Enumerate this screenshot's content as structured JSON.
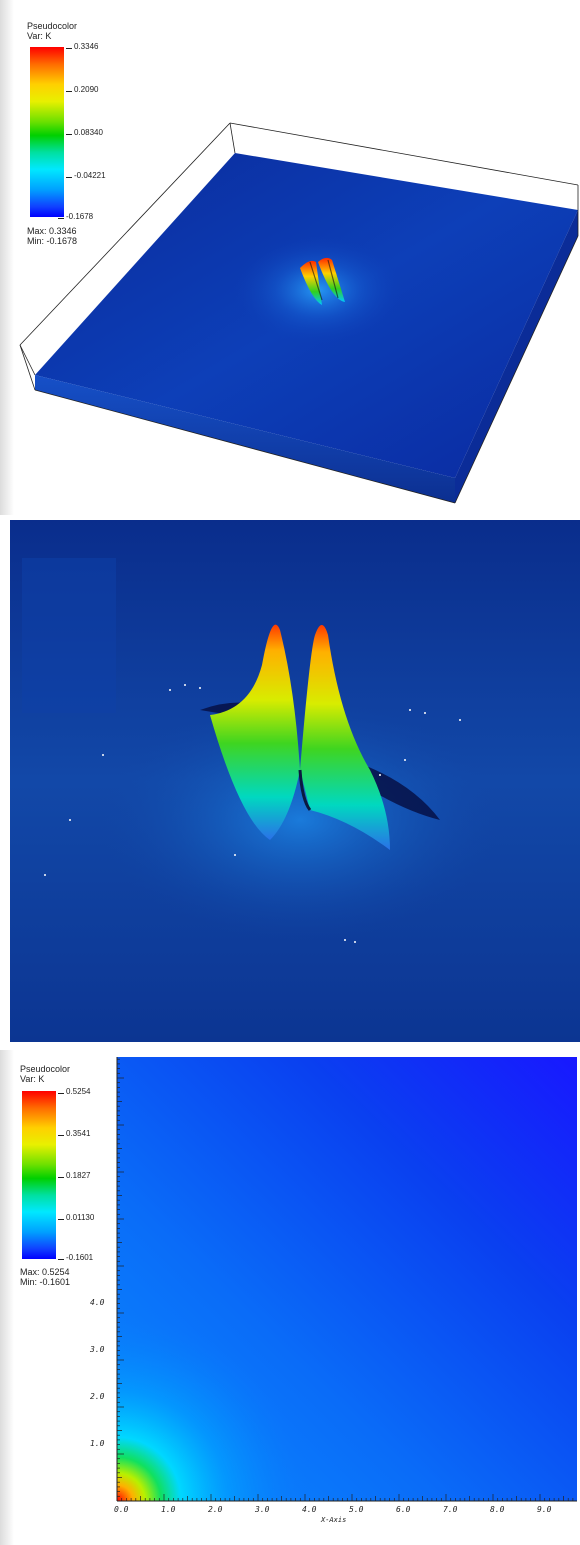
{
  "panel1": {
    "legend": {
      "title": "Pseudocolor",
      "var": "Var: K",
      "ticks": [
        "0.3346",
        "0.2090",
        "0.08340",
        "-0.04221",
        "-0.1678"
      ],
      "max": "Max: 0.3346",
      "min": "Min: -0.1678"
    }
  },
  "panel3": {
    "legend": {
      "title": "Pseudocolor",
      "var": "Var: K",
      "ticks": [
        "0.5254",
        "0.3541",
        "0.1827",
        "0.01130",
        "-0.1601"
      ],
      "max": "Max: 0.5254",
      "min": "Min: -0.1601"
    },
    "x_ticks": [
      "0.0",
      "1.0",
      "2.0",
      "3.0",
      "4.0",
      "5.0",
      "6.0",
      "7.0",
      "8.0",
      "9.0"
    ],
    "y_ticks": [
      "1.0",
      "2.0",
      "3.0",
      "4.0"
    ],
    "x_title": "X-Axis"
  }
}
